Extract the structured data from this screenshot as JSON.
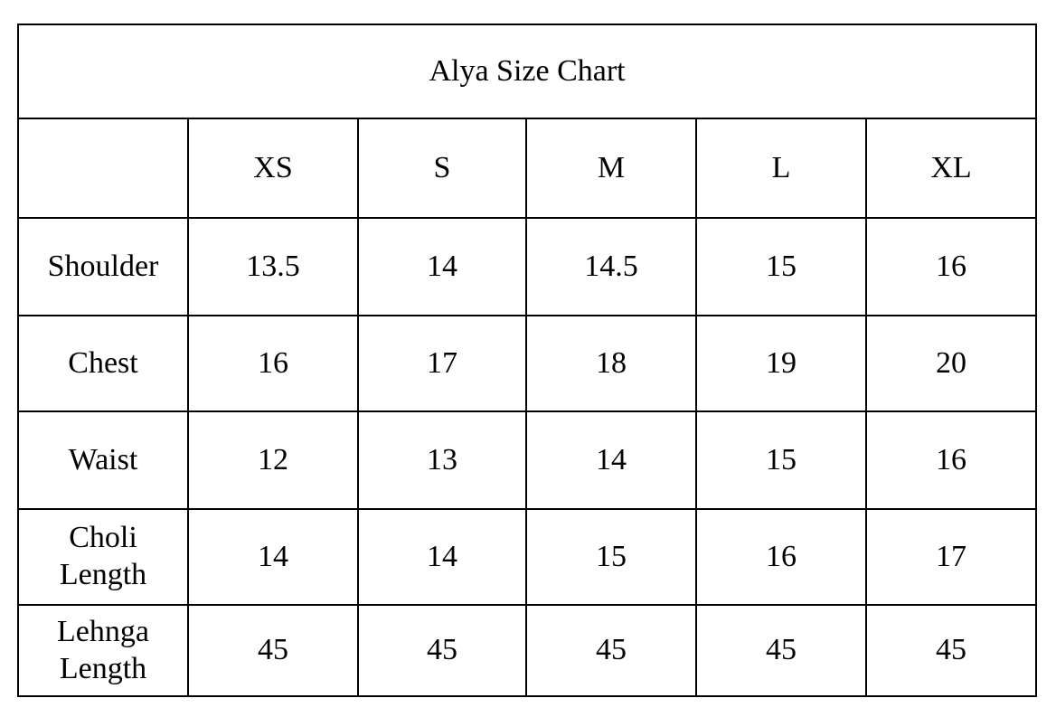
{
  "title": "Alya Size Chart",
  "columns": [
    "",
    "XS",
    "S",
    "M",
    "L",
    "XL"
  ],
  "rows": [
    {
      "label": "Shoulder",
      "values": [
        "13.5",
        "14",
        "14.5",
        "15",
        "16"
      ]
    },
    {
      "label": "Chest",
      "values": [
        "16",
        "17",
        "18",
        "19",
        "20"
      ]
    },
    {
      "label": "Waist",
      "values": [
        "12",
        "13",
        "14",
        "15",
        "16"
      ]
    },
    {
      "label": "Choli\nLength",
      "values": [
        "14",
        "14",
        "15",
        "16",
        "17"
      ]
    },
    {
      "label": "Lehnga\nLength",
      "values": [
        "45",
        "45",
        "45",
        "45",
        "45"
      ]
    }
  ]
}
